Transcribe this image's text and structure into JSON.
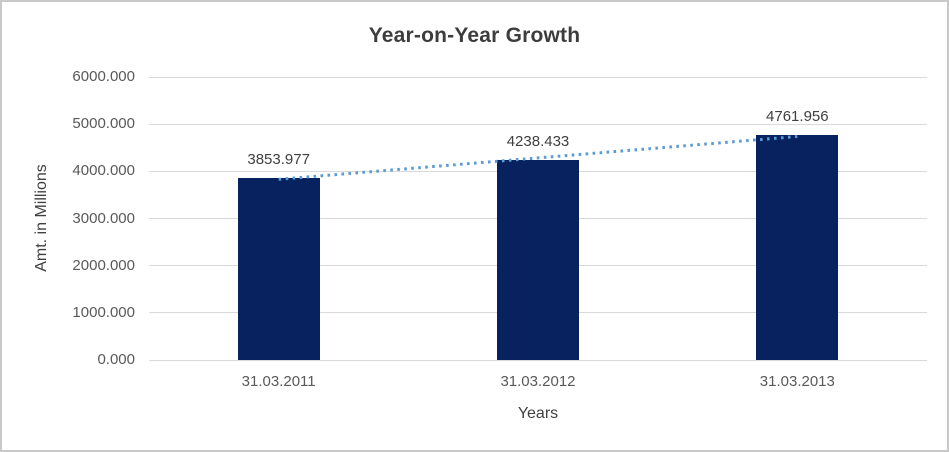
{
  "chart_data": {
    "type": "bar",
    "title": "Year-on-Year Growth",
    "xlabel": "Years",
    "ylabel": "Amt. in Millions",
    "categories": [
      "31.03.2011",
      "31.03.2012",
      "31.03.2013"
    ],
    "values": [
      3853.977,
      4238.433,
      4761.956
    ],
    "data_labels": [
      "3853.977",
      "4238.433",
      "4761.956"
    ],
    "ylim": [
      0,
      6000
    ],
    "ytick_step": 1000,
    "ytick_labels": [
      "0.000",
      "1000.000",
      "2000.000",
      "3000.000",
      "4000.000",
      "5000.000",
      "6000.000"
    ],
    "grid": true,
    "legend": "none",
    "trendline": {
      "type": "linear",
      "style": "dotted"
    },
    "colors": {
      "bar": "#08215f",
      "trendline": "#5b9bd5",
      "gridline": "#d9d9d9",
      "axis_text": "#595959",
      "title_text": "#3d3d3d",
      "label_text": "#404040",
      "border": "#c9c9c9",
      "background": "#ffffff"
    }
  }
}
